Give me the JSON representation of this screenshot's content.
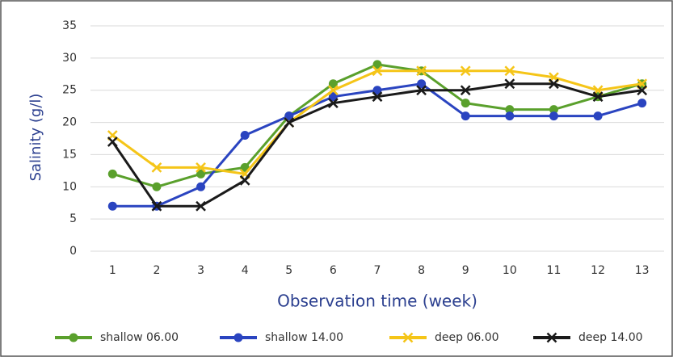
{
  "chart_data": {
    "type": "line",
    "y_label": "Salinity (g/l)",
    "x_label": "Observation time (week)",
    "categories": [
      "1",
      "2",
      "3",
      "4",
      "5",
      "6",
      "7",
      "8",
      "9",
      "10",
      "11",
      "12",
      "13"
    ],
    "series": [
      {
        "name": "shallow 06.00",
        "color": "#5aa02c",
        "marker": "circle",
        "values": [
          12,
          10,
          12,
          13,
          21,
          26,
          29,
          28,
          23,
          22,
          22,
          24,
          26
        ]
      },
      {
        "name": "shallow 14.00",
        "color": "#2a44c0",
        "marker": "circle",
        "values": [
          7,
          7,
          10,
          18,
          21,
          24,
          25,
          26,
          21,
          21,
          21,
          21,
          23
        ]
      },
      {
        "name": "deep 06.00",
        "color": "#f5c518",
        "marker": "x",
        "values": [
          18,
          13,
          13,
          12,
          20,
          25,
          28,
          28,
          28,
          28,
          27,
          25,
          26
        ]
      },
      {
        "name": "deep 14.00",
        "color": "#1a1a1a",
        "marker": "x",
        "values": [
          17,
          7,
          7,
          11,
          20,
          23,
          24,
          25,
          25,
          26,
          26,
          24,
          25
        ]
      }
    ],
    "ylim": [
      0,
      35
    ],
    "yticks": [
      0,
      5,
      10,
      15,
      20,
      25,
      30,
      35
    ],
    "grid": true,
    "legend": "bottom"
  }
}
